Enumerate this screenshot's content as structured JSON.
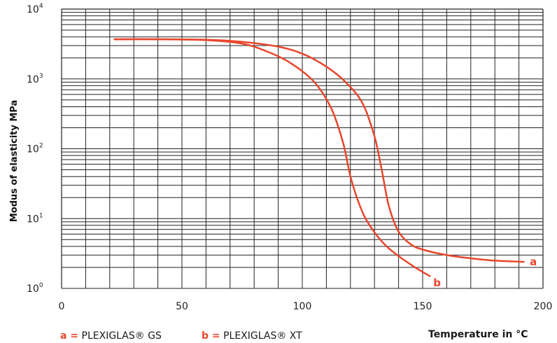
{
  "chart_data": {
    "type": "line",
    "xlabel": "Temperature in °C",
    "ylabel": "Modus of elasticity MPa",
    "xlim": [
      0,
      200
    ],
    "ylim": [
      1,
      10000
    ],
    "yscale": "log",
    "x_ticks": [
      "0",
      "50",
      "100",
      "150",
      "200"
    ],
    "y_ticks": [
      {
        "base": "10",
        "exp": "0"
      },
      {
        "base": "10",
        "exp": "1"
      },
      {
        "base": "10",
        "exp": "2"
      },
      {
        "base": "10",
        "exp": "3"
      },
      {
        "base": "10",
        "exp": "4"
      }
    ],
    "grid": true,
    "series": [
      {
        "name": "a",
        "color": "#e8462c",
        "points": [
          [
            22,
            3700
          ],
          [
            40,
            3700
          ],
          [
            60,
            3650
          ],
          [
            75,
            3400
          ],
          [
            90,
            2900
          ],
          [
            100,
            2300
          ],
          [
            110,
            1500
          ],
          [
            118,
            900
          ],
          [
            125,
            450
          ],
          [
            130,
            150
          ],
          [
            133,
            50
          ],
          [
            136,
            15
          ],
          [
            140,
            6.5
          ],
          [
            145,
            4.3
          ],
          [
            150,
            3.6
          ],
          [
            160,
            3.0
          ],
          [
            170,
            2.7
          ],
          [
            180,
            2.5
          ],
          [
            192,
            2.4
          ]
        ]
      },
      {
        "name": "b",
        "color": "#e8462c",
        "points": [
          [
            22,
            3700
          ],
          [
            40,
            3700
          ],
          [
            60,
            3600
          ],
          [
            75,
            3200
          ],
          [
            85,
            2500
          ],
          [
            95,
            1700
          ],
          [
            105,
            900
          ],
          [
            112,
            380
          ],
          [
            117,
            120
          ],
          [
            120,
            40
          ],
          [
            124,
            15
          ],
          [
            128,
            8
          ],
          [
            135,
            4
          ],
          [
            145,
            2.2
          ],
          [
            153,
            1.5
          ]
        ]
      }
    ],
    "annotations": [
      {
        "text": "a",
        "x": 196,
        "y": 2.4
      },
      {
        "text": "b",
        "x": 156,
        "y": 1.2
      }
    ]
  },
  "legend": {
    "a_key": "a =",
    "a_label": "PLEXIGLAS® GS",
    "b_key": "b =",
    "b_label": "PLEXIGLAS® XT"
  }
}
